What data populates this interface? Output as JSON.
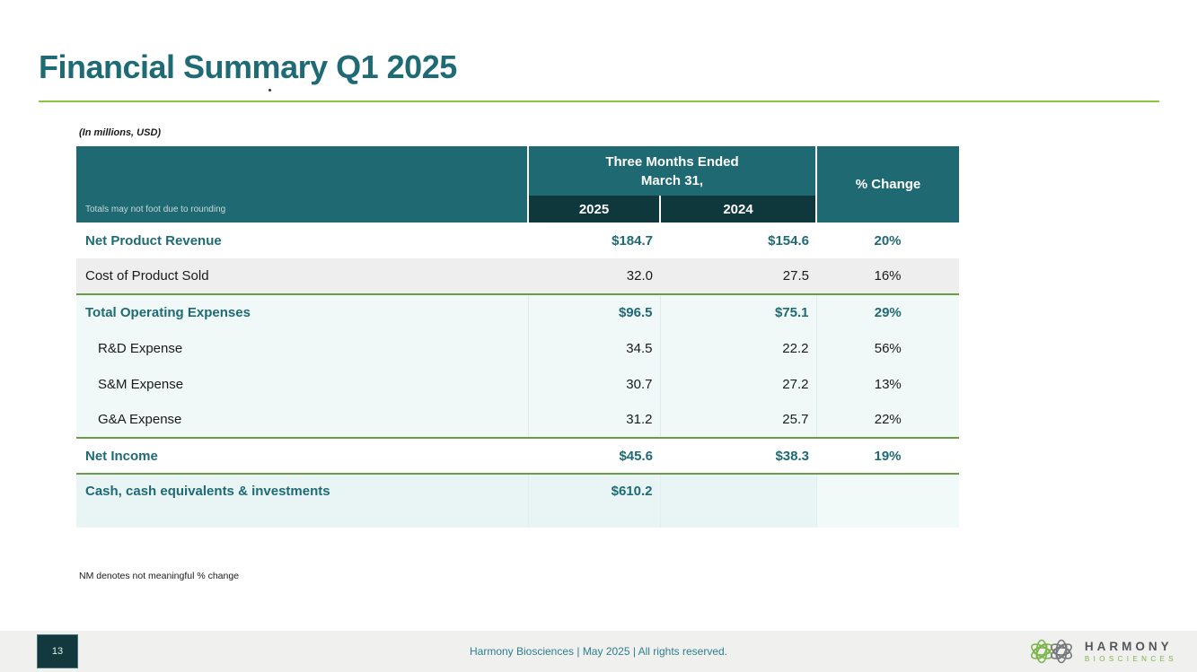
{
  "slide": {
    "title": "Financial Summary Q1 2025",
    "units_note": "(In millions, USD)",
    "nm_footnote": "NM denotes not meaningful % change"
  },
  "table": {
    "rounding_note": "Totals may not foot due to rounding",
    "period_line1": "Three Months Ended",
    "period_line2": "March 31,",
    "col_2025": "2025",
    "col_2024": "2024",
    "pct_header": "% Change",
    "rows": [
      {
        "label": "Net Product Revenue",
        "v2025": "$184.7",
        "v2024": "$154.6",
        "pct": "20%",
        "emphasis": true,
        "indent": false,
        "shade": "none",
        "separator_above": false
      },
      {
        "label": "Cost of Product Sold",
        "v2025": "32.0",
        "v2024": "27.5",
        "pct": "16%",
        "emphasis": false,
        "indent": false,
        "shade": "gray",
        "separator_above": false
      },
      {
        "label": "Total Operating Expenses",
        "v2025": "$96.5",
        "v2024": "$75.1",
        "pct": "29%",
        "emphasis": true,
        "indent": false,
        "shade": "mint",
        "separator_above": true
      },
      {
        "label": "R&D Expense",
        "v2025": "34.5",
        "v2024": "22.2",
        "pct": "56%",
        "emphasis": false,
        "indent": true,
        "shade": "mint",
        "separator_above": false
      },
      {
        "label": "S&M Expense",
        "v2025": "30.7",
        "v2024": "27.2",
        "pct": "13%",
        "emphasis": false,
        "indent": true,
        "shade": "mint",
        "separator_above": false
      },
      {
        "label": "G&A Expense",
        "v2025": "31.2",
        "v2024": "25.7",
        "pct": "22%",
        "emphasis": false,
        "indent": true,
        "shade": "mint",
        "separator_above": false
      },
      {
        "label": "Net Income",
        "v2025": "$45.6",
        "v2024": "$38.3",
        "pct": "19%",
        "emphasis": true,
        "indent": false,
        "shade": "none",
        "separator_above": true
      },
      {
        "label": "Cash, cash equivalents & investments",
        "v2025": "$610.2",
        "v2024": "",
        "pct": "",
        "emphasis": true,
        "indent": false,
        "shade": "cash",
        "separator_above": true
      }
    ]
  },
  "footer": {
    "page_number": "13",
    "text": "Harmony Biosciences  | May 2025 | All rights reserved.",
    "logo_title": "HARMONY",
    "logo_subtitle": "BIOSCIENCES"
  },
  "colors": {
    "header_teal": "#1E6972",
    "header_dark_teal": "#0F383D",
    "text_teal": "#1E6A75",
    "title_rule_green": "#8CC63F",
    "divider_green": "#6B9C49",
    "gray_row": "#EEEEEE",
    "mint_row": "#F1F8F8",
    "cash_row": "#E9F4F4",
    "footer_bar": "#F0F0EF",
    "page_box": "#12393E",
    "logo_green": "#7CB64A",
    "logo_gray": "#77787B"
  }
}
